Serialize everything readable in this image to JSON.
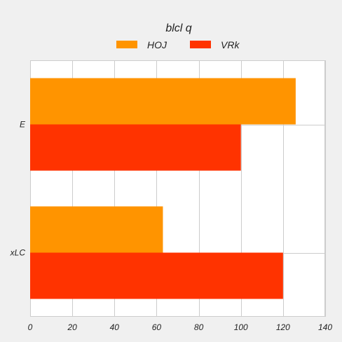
{
  "chart_data": {
    "type": "bar",
    "orientation": "horizontal",
    "title": "blcl q",
    "categories": [
      "E",
      "xLC"
    ],
    "series": [
      {
        "name": "HOJ",
        "color": "#ff9400",
        "values": [
          126,
          63
        ]
      },
      {
        "name": "VRk",
        "color": "#ff3300",
        "values": [
          100,
          120
        ]
      }
    ],
    "xlim": [
      0,
      140
    ],
    "x_ticks": [
      0,
      20,
      40,
      60,
      80,
      100,
      120,
      140
    ],
    "grid": true,
    "legend_position": "top"
  },
  "colors": {
    "background": "#f0f0f0",
    "plot_background": "#ffffff",
    "gridline": "#cccccc"
  }
}
